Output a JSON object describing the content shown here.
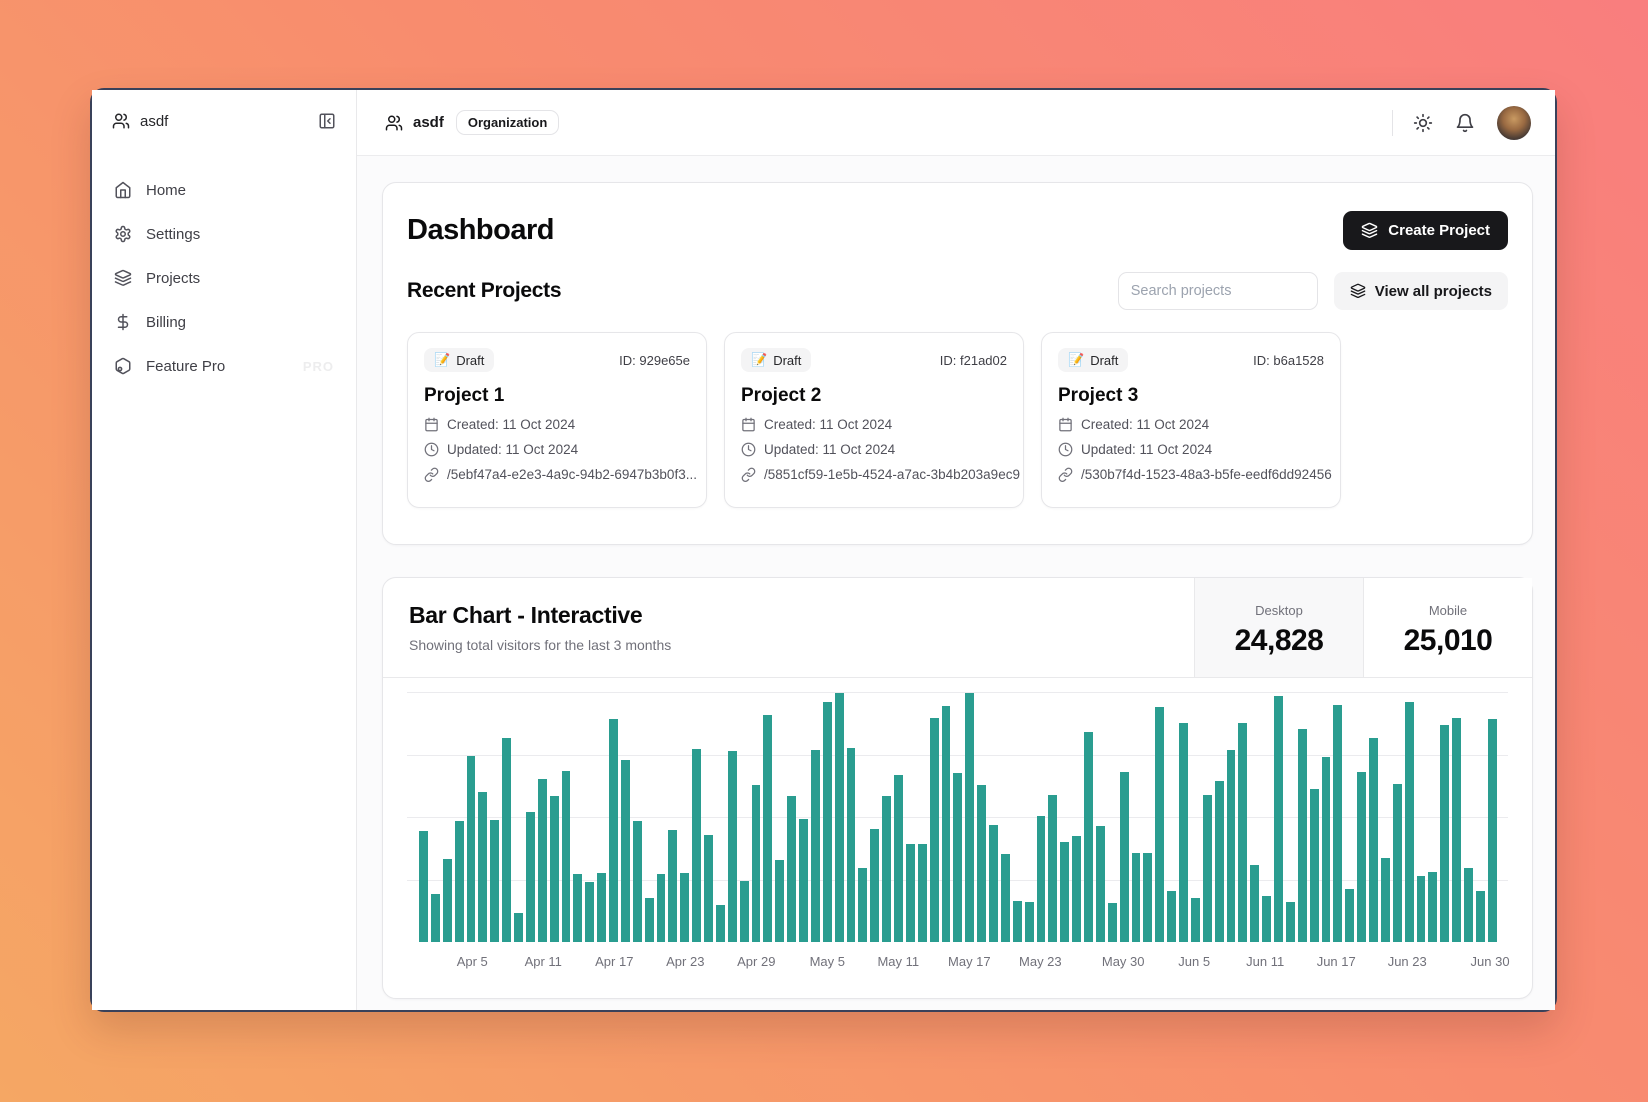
{
  "sidebar": {
    "org_name": "asdf",
    "items": [
      {
        "label": "Home"
      },
      {
        "label": "Settings"
      },
      {
        "label": "Projects"
      },
      {
        "label": "Billing"
      },
      {
        "label": "Feature Pro",
        "badge": "PRO"
      }
    ]
  },
  "header": {
    "org_name": "asdf",
    "org_badge": "Organization"
  },
  "dashboard": {
    "title": "Dashboard",
    "create_button": "Create Project",
    "recent_title": "Recent Projects",
    "search_placeholder": "Search projects",
    "view_all_button": "View all projects",
    "projects": [
      {
        "status_emoji": "📝",
        "status": "Draft",
        "id_label": "ID: 929e65e",
        "name": "Project 1",
        "created": "Created: 11 Oct 2024",
        "updated": "Updated: 11 Oct 2024",
        "link": "/5ebf47a4-e2e3-4a9c-94b2-6947b3b0f3..."
      },
      {
        "status_emoji": "📝",
        "status": "Draft",
        "id_label": "ID: f21ad02",
        "name": "Project 2",
        "created": "Created: 11 Oct 2024",
        "updated": "Updated: 11 Oct 2024",
        "link": "/5851cf59-1e5b-4524-a7ac-3b4b203a9ec9"
      },
      {
        "status_emoji": "📝",
        "status": "Draft",
        "id_label": "ID: b6a1528",
        "name": "Project 3",
        "created": "Created: 11 Oct 2024",
        "updated": "Updated: 11 Oct 2024",
        "link": "/530b7f4d-1523-48a3-b5fe-eedf6dd92456"
      }
    ]
  },
  "chart_card": {
    "title": "Bar Chart - Interactive",
    "subtitle": "Showing total visitors for the last 3 months",
    "stats": [
      {
        "label": "Desktop",
        "value": "24,828",
        "active": true
      },
      {
        "label": "Mobile",
        "value": "25,010",
        "active": false
      }
    ]
  },
  "chart_data": {
    "type": "bar",
    "title": "Bar Chart - Interactive",
    "subtitle": "Showing total visitors for the last 3 months",
    "x_range": [
      "Apr 1",
      "Jun 30"
    ],
    "x_interval": "daily",
    "active_series": "Desktop",
    "series": [
      {
        "name": "Desktop",
        "total": 24828,
        "values": [
          222,
          97,
          167,
          242,
          373,
          301,
          245,
          409,
          59,
          261,
          327,
          292,
          342,
          137,
          120,
          138,
          446,
          364,
          243,
          89,
          137,
          224,
          138,
          387,
          215,
          75,
          383,
          122,
          315,
          454,
          165,
          293,
          247,
          385,
          481,
          498,
          388,
          149,
          227,
          293,
          335,
          197,
          197,
          448,
          473,
          338,
          499,
          315,
          235,
          177,
          82,
          81,
          252,
          294,
          201,
          213,
          420,
          233,
          78,
          340,
          178,
          178,
          470,
          103,
          439,
          88,
          294,
          323,
          385,
          438,
          155,
          92,
          492,
          81,
          426,
          307,
          371,
          475,
          107,
          341,
          408,
          169,
          317,
          480,
          132,
          141,
          434,
          448,
          149,
          103,
          446
        ]
      }
    ],
    "mobile_total_displayed": 25010,
    "ylim": [
      0,
      500
    ],
    "grid_values": [
      125,
      250,
      375,
      500
    ],
    "bar_color": "#2a9d90",
    "x_ticks": [
      {
        "label": "Apr 5",
        "index": 4
      },
      {
        "label": "Apr 11",
        "index": 10
      },
      {
        "label": "Apr 17",
        "index": 16
      },
      {
        "label": "Apr 23",
        "index": 22
      },
      {
        "label": "Apr 29",
        "index": 28
      },
      {
        "label": "May 5",
        "index": 34
      },
      {
        "label": "May 11",
        "index": 40
      },
      {
        "label": "May 17",
        "index": 46
      },
      {
        "label": "May 23",
        "index": 52
      },
      {
        "label": "May 30",
        "index": 59
      },
      {
        "label": "Jun 5",
        "index": 65
      },
      {
        "label": "Jun 11",
        "index": 71
      },
      {
        "label": "Jun 17",
        "index": 77
      },
      {
        "label": "Jun 23",
        "index": 83
      },
      {
        "label": "Jun 30",
        "index": 90
      }
    ]
  }
}
